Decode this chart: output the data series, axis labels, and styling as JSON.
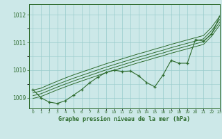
{
  "xlabel": "Graphe pression niveau de la mer (hPa)",
  "ylim": [
    1008.62,
    1012.38
  ],
  "xlim": [
    -0.5,
    23
  ],
  "yticks": [
    1009,
    1010,
    1011,
    1012
  ],
  "bg_color": "#cce8e8",
  "grid_color": "#99cccc",
  "line_color": "#2d6b2d",
  "data_line": [
    1009.3,
    1009.0,
    1008.85,
    1008.8,
    1008.9,
    1009.1,
    1009.3,
    1009.55,
    1009.75,
    1009.92,
    1010.0,
    1009.95,
    1009.97,
    1009.8,
    1009.55,
    1009.4,
    1009.82,
    1010.35,
    1010.25,
    1010.25,
    1011.1,
    1011.05,
    1011.3,
    1011.95
  ],
  "trend1": [
    1009.28,
    1009.35,
    1009.48,
    1009.6,
    1009.72,
    1009.83,
    1009.93,
    1010.03,
    1010.13,
    1010.23,
    1010.32,
    1010.41,
    1010.5,
    1010.59,
    1010.67,
    1010.76,
    1010.84,
    1010.93,
    1011.01,
    1011.09,
    1011.17,
    1011.25,
    1011.55,
    1011.95
  ],
  "trend2": [
    1009.18,
    1009.25,
    1009.37,
    1009.49,
    1009.6,
    1009.71,
    1009.81,
    1009.91,
    1010.01,
    1010.11,
    1010.2,
    1010.29,
    1010.38,
    1010.47,
    1010.55,
    1010.64,
    1010.72,
    1010.81,
    1010.89,
    1010.97,
    1011.05,
    1011.13,
    1011.43,
    1011.83
  ],
  "trend3": [
    1009.08,
    1009.15,
    1009.27,
    1009.39,
    1009.5,
    1009.61,
    1009.71,
    1009.81,
    1009.91,
    1010.01,
    1010.1,
    1010.19,
    1010.28,
    1010.37,
    1010.45,
    1010.54,
    1010.62,
    1010.71,
    1010.79,
    1010.87,
    1010.95,
    1011.03,
    1011.33,
    1011.73
  ],
  "trend4": [
    1008.98,
    1009.05,
    1009.17,
    1009.29,
    1009.4,
    1009.51,
    1009.61,
    1009.71,
    1009.81,
    1009.91,
    1010.0,
    1010.09,
    1010.18,
    1010.27,
    1010.35,
    1010.44,
    1010.52,
    1010.61,
    1010.69,
    1010.77,
    1010.85,
    1010.93,
    1011.23,
    1011.63
  ]
}
